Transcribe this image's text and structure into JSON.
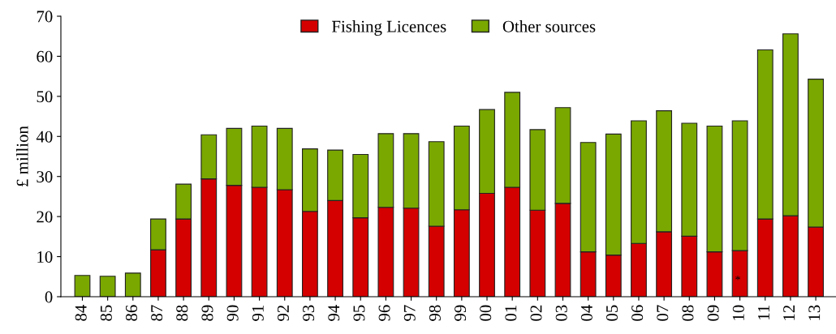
{
  "chart_data": {
    "type": "bar",
    "ylabel": "£ million",
    "stacked": true,
    "categories": [
      "84",
      "85",
      "86",
      "87",
      "88",
      "89",
      "90",
      "91",
      "92",
      "93",
      "94",
      "95",
      "96",
      "97",
      "98",
      "99",
      "00",
      "01",
      "02",
      "03",
      "04",
      "05",
      "06",
      "07",
      "08",
      "09",
      "10",
      "11",
      "12",
      "13"
    ],
    "series": [
      {
        "name": "Fishing Licences",
        "color": "#d40000",
        "values": [
          0,
          0,
          0,
          11.7,
          19.4,
          29.4,
          27.8,
          27.3,
          26.7,
          21.3,
          24.0,
          19.7,
          22.3,
          22.1,
          17.6,
          21.7,
          25.8,
          27.3,
          21.6,
          23.3,
          11.2,
          10.4,
          13.3,
          16.2,
          15.1,
          11.2,
          11.5,
          19.4,
          20.2,
          17.4
        ]
      },
      {
        "name": "Other sources",
        "color": "#7aa800",
        "values": [
          5.3,
          5.1,
          5.9,
          7.7,
          8.7,
          11.0,
          14.2,
          15.3,
          15.3,
          15.6,
          12.6,
          15.8,
          18.4,
          18.6,
          21.1,
          20.9,
          20.9,
          23.7,
          20.1,
          23.9,
          27.3,
          30.2,
          30.6,
          30.2,
          28.2,
          31.4,
          32.4,
          42.2,
          45.4,
          36.9
        ]
      }
    ],
    "ylim": [
      0,
      70
    ],
    "yticks": [
      0,
      10,
      20,
      30,
      40,
      50,
      60,
      70
    ],
    "grid": false,
    "legend": "top",
    "annotations": [
      "*"
    ]
  }
}
